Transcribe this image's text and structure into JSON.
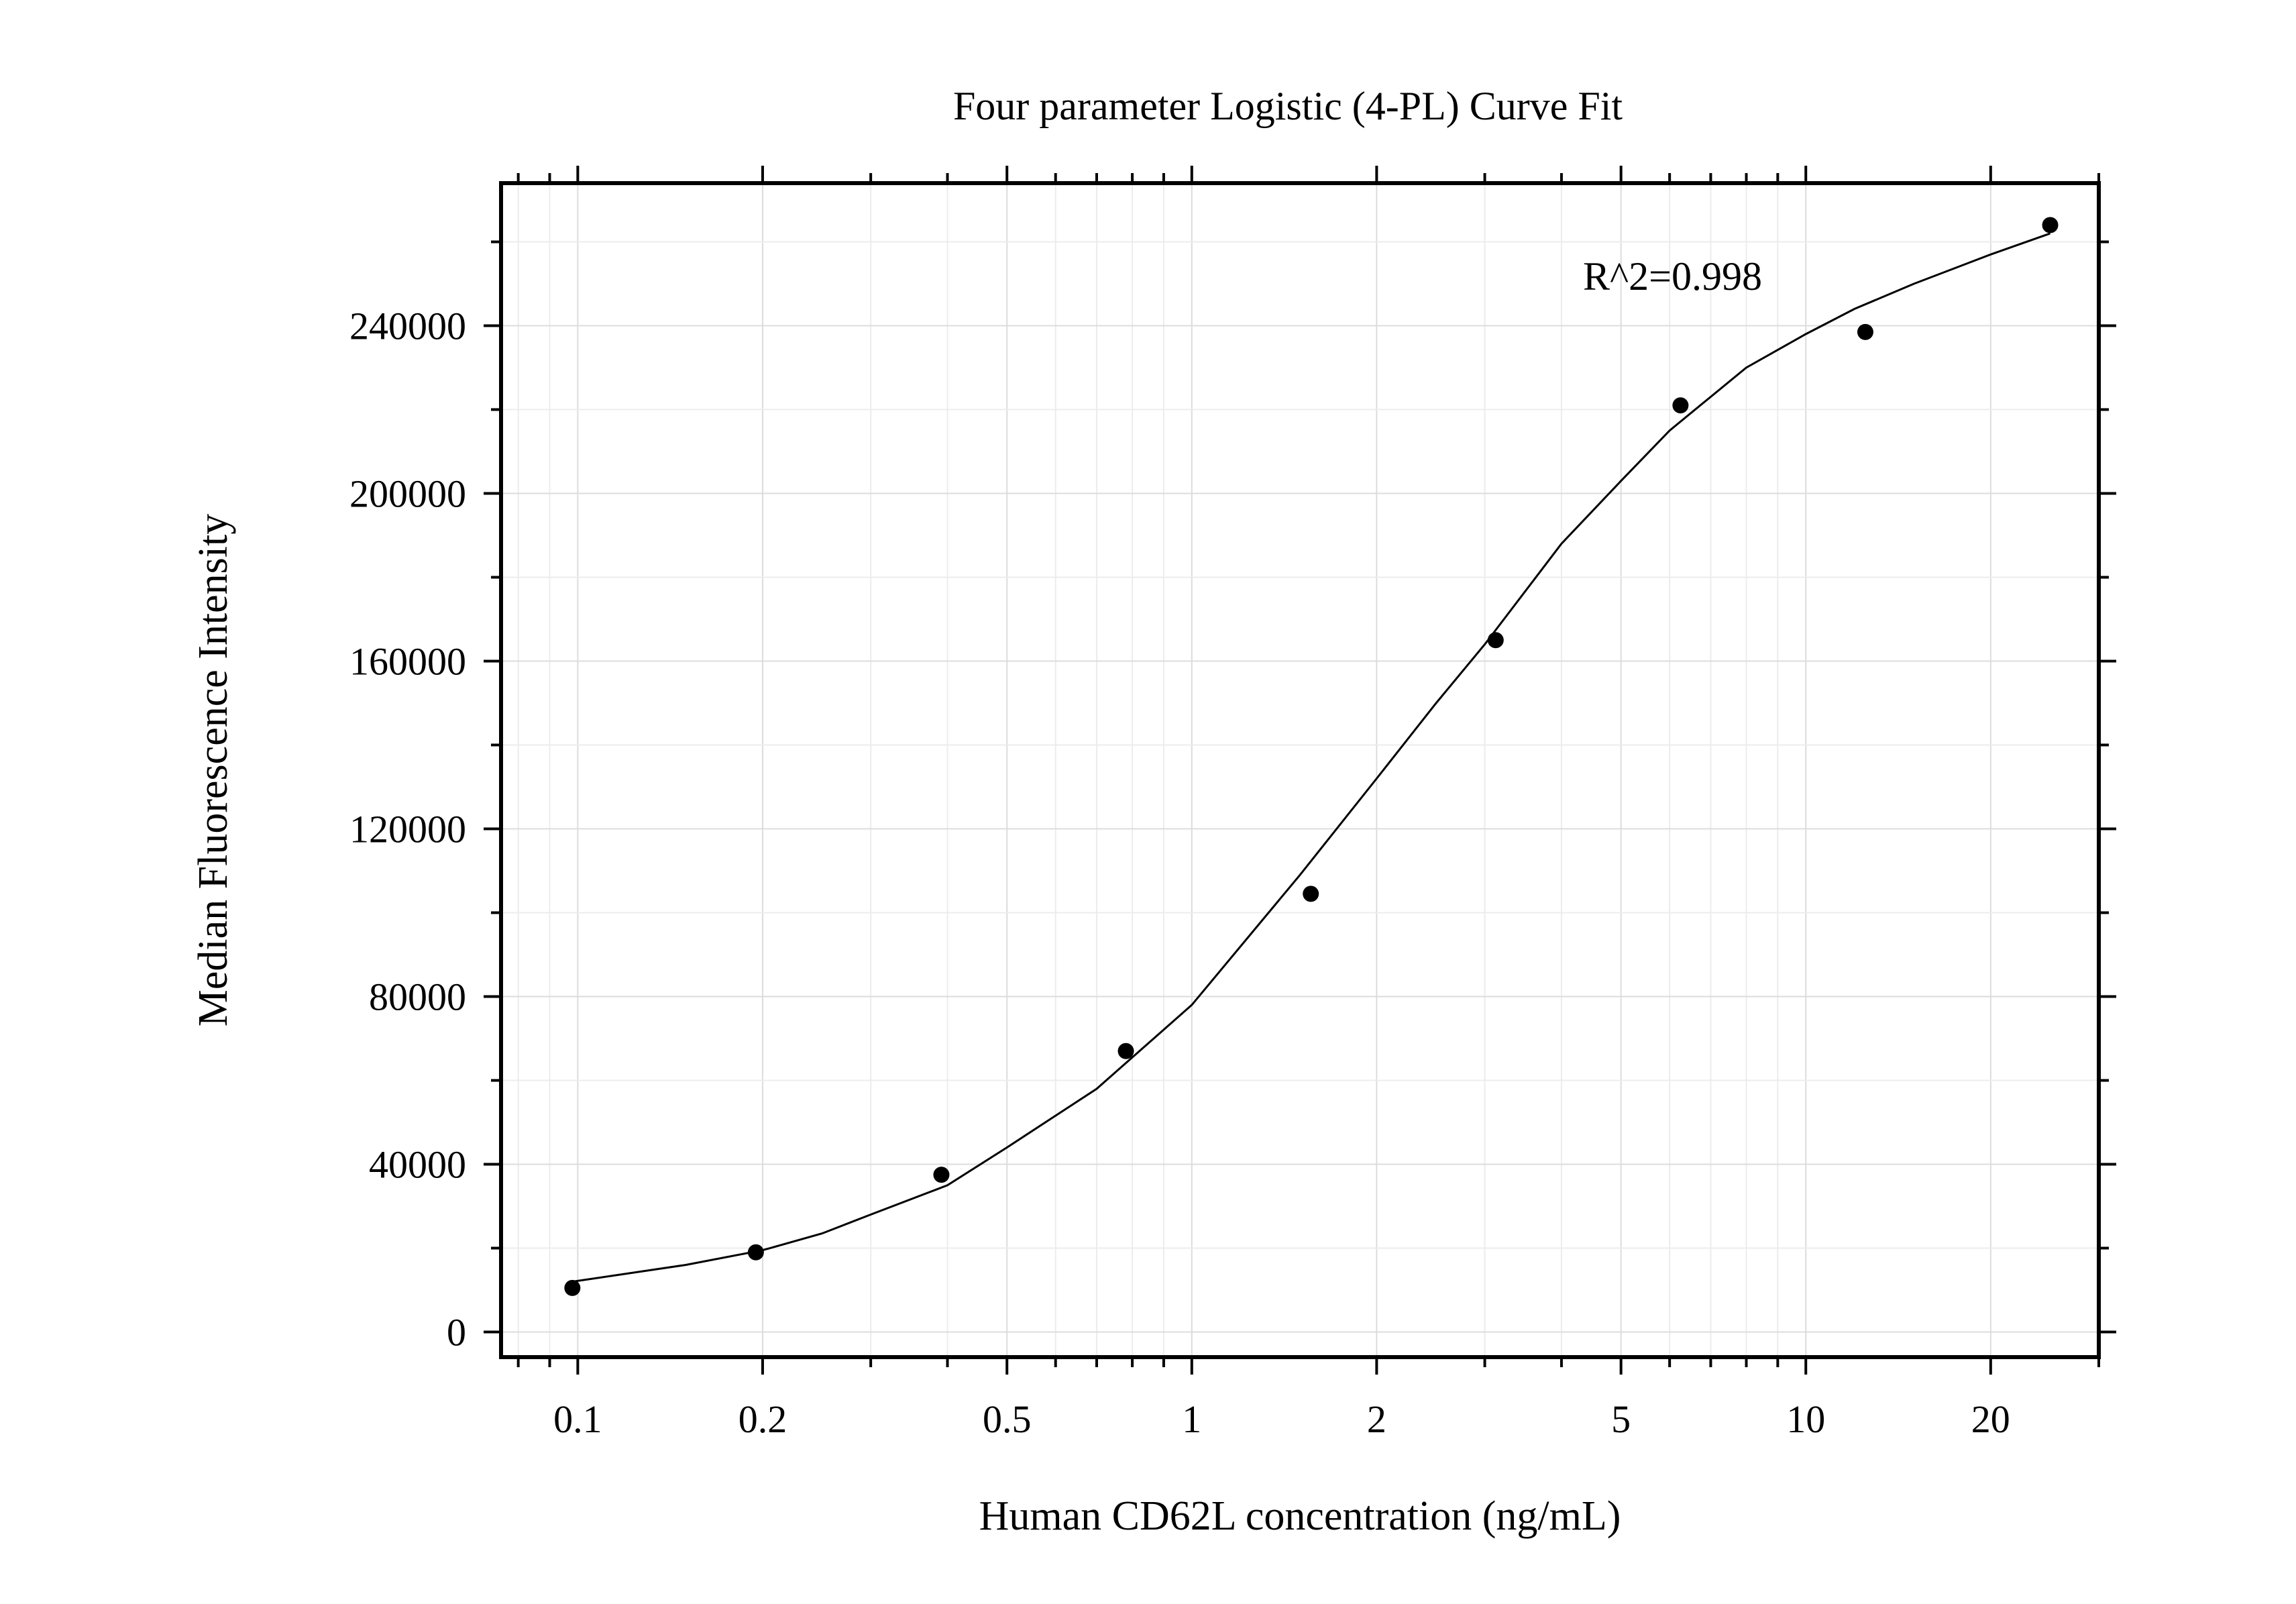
{
  "chart_data": {
    "type": "scatter",
    "title": "Four parameter Logistic (4-PL) Curve Fit",
    "xlabel": "Human CD62L concentration (ng/mL)",
    "ylabel": "Median Fluorescence Intensity",
    "x_scale": "log",
    "xlim": [
      0.075,
      30
    ],
    "ylim": [
      -6000,
      274000
    ],
    "x_ticks": [
      0.1,
      0.2,
      0.5,
      1,
      2,
      5,
      10,
      20
    ],
    "x_tick_labels": [
      "0.1",
      "0.2",
      "0.5",
      "1",
      "2",
      "5",
      "10",
      "20"
    ],
    "y_ticks": [
      0,
      40000,
      80000,
      120000,
      160000,
      200000,
      240000
    ],
    "y_tick_labels": [
      "0",
      "40000",
      "80000",
      "120000",
      "160000",
      "200000",
      "240000"
    ],
    "grid": true,
    "annotation": "R^2=0.998",
    "series": [
      {
        "x": [
          0.098,
          0.195,
          0.391,
          0.781,
          1.5625,
          3.125,
          6.25,
          12.5,
          25
        ],
        "y": [
          10500,
          19000,
          37500,
          67000,
          104500,
          165000,
          221000,
          238500,
          264000
        ]
      }
    ],
    "fit": {
      "model": "4PL",
      "x": [
        0.098,
        0.15,
        0.2,
        0.25,
        0.3,
        0.4,
        0.5,
        0.7,
        1,
        1.5,
        2,
        2.5,
        3,
        4,
        5,
        6,
        8,
        10,
        12,
        15,
        20,
        25
      ],
      "y": [
        12000,
        16000,
        19500,
        23500,
        28000,
        35000,
        44000,
        58000,
        78000,
        109000,
        132000,
        150000,
        164000,
        188000,
        203000,
        215000,
        230000,
        238000,
        244000,
        250000,
        257000,
        262000
      ]
    }
  }
}
